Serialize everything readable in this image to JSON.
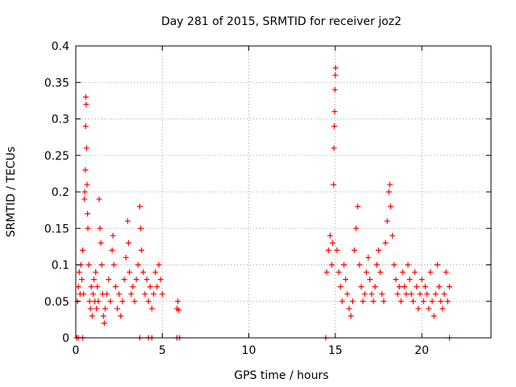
{
  "chart_data": {
    "type": "scatter",
    "title": "Day 281 of 2015, SRMTID for receiver joz2",
    "xlabel": "GPS time / hours",
    "ylabel": "SRMTID / TECUs",
    "xlim": [
      0,
      24
    ],
    "ylim": [
      0,
      0.4
    ],
    "xticks": [
      0,
      5,
      10,
      15,
      20
    ],
    "xtick_labels": [
      "0",
      "5",
      "10",
      "15",
      "20"
    ],
    "yticks": [
      0,
      0.05,
      0.1,
      0.15,
      0.2,
      0.25,
      0.3,
      0.35,
      0.4
    ],
    "ytick_labels": [
      "0",
      "0.05",
      "0.1",
      "0.15",
      "0.2",
      "0.25",
      "0.3",
      "0.35",
      "0.4"
    ],
    "grid": true,
    "marker": "+",
    "series": [
      {
        "name": "SRMTID joz2",
        "color": "#ff0000",
        "points": [
          [
            0.05,
            0
          ],
          [
            0.15,
            0
          ],
          [
            0.4,
            0
          ],
          [
            3.7,
            0
          ],
          [
            4.2,
            0
          ],
          [
            4.4,
            0
          ],
          [
            5.85,
            0
          ],
          [
            6.0,
            0
          ],
          [
            14.45,
            0
          ],
          [
            21.6,
            0
          ],
          [
            0.1,
            0.05
          ],
          [
            0.15,
            0.07
          ],
          [
            0.2,
            0.09
          ],
          [
            0.25,
            0.06
          ],
          [
            0.3,
            0.1
          ],
          [
            0.35,
            0.08
          ],
          [
            0.4,
            0.12
          ],
          [
            0.45,
            0.06
          ],
          [
            0.5,
            0.19
          ],
          [
            0.52,
            0.2
          ],
          [
            0.55,
            0.23
          ],
          [
            0.57,
            0.29
          ],
          [
            0.58,
            0.33
          ],
          [
            0.6,
            0.32
          ],
          [
            0.62,
            0.26
          ],
          [
            0.65,
            0.21
          ],
          [
            0.68,
            0.17
          ],
          [
            0.7,
            0.15
          ],
          [
            0.75,
            0.1
          ],
          [
            0.8,
            0.05
          ],
          [
            0.85,
            0.04
          ],
          [
            0.9,
            0.07
          ],
          [
            0.95,
            0.03
          ],
          [
            1.0,
            0.06
          ],
          [
            1.05,
            0.08
          ],
          [
            1.1,
            0.05
          ],
          [
            1.15,
            0.09
          ],
          [
            1.2,
            0.04
          ],
          [
            1.25,
            0.07
          ],
          [
            1.3,
            0.05
          ],
          [
            1.35,
            0.19
          ],
          [
            1.4,
            0.15
          ],
          [
            1.45,
            0.13
          ],
          [
            1.5,
            0.1
          ],
          [
            1.55,
            0.06
          ],
          [
            1.6,
            0.03
          ],
          [
            1.65,
            0.02
          ],
          [
            1.7,
            0.04
          ],
          [
            1.8,
            0.06
          ],
          [
            1.9,
            0.08
          ],
          [
            2.0,
            0.05
          ],
          [
            2.1,
            0.12
          ],
          [
            2.15,
            0.14
          ],
          [
            2.2,
            0.1
          ],
          [
            2.3,
            0.07
          ],
          [
            2.4,
            0.04
          ],
          [
            2.5,
            0.06
          ],
          [
            2.6,
            0.03
          ],
          [
            2.7,
            0.05
          ],
          [
            2.8,
            0.08
          ],
          [
            2.9,
            0.11
          ],
          [
            3.0,
            0.16
          ],
          [
            3.05,
            0.13
          ],
          [
            3.1,
            0.09
          ],
          [
            3.2,
            0.06
          ],
          [
            3.3,
            0.07
          ],
          [
            3.4,
            0.05
          ],
          [
            3.5,
            0.08
          ],
          [
            3.6,
            0.1
          ],
          [
            3.7,
            0.18
          ],
          [
            3.75,
            0.15
          ],
          [
            3.8,
            0.12
          ],
          [
            3.9,
            0.09
          ],
          [
            4.0,
            0.06
          ],
          [
            4.1,
            0.08
          ],
          [
            4.2,
            0.05
          ],
          [
            4.3,
            0.07
          ],
          [
            4.4,
            0.04
          ],
          [
            4.5,
            0.06
          ],
          [
            4.6,
            0.09
          ],
          [
            4.7,
            0.07
          ],
          [
            4.8,
            0.1
          ],
          [
            4.9,
            0.08
          ],
          [
            5.0,
            0.06
          ],
          [
            5.85,
            0.04
          ],
          [
            5.9,
            0.05
          ],
          [
            5.95,
            0.038
          ],
          [
            14.5,
            0.09
          ],
          [
            14.6,
            0.12
          ],
          [
            14.7,
            0.14
          ],
          [
            14.8,
            0.1
          ],
          [
            14.85,
            0.13
          ],
          [
            14.9,
            0.21
          ],
          [
            14.92,
            0.26
          ],
          [
            14.94,
            0.29
          ],
          [
            14.96,
            0.31
          ],
          [
            14.98,
            0.34
          ],
          [
            15.0,
            0.36
          ],
          [
            15.02,
            0.37
          ],
          [
            15.1,
            0.12
          ],
          [
            15.2,
            0.09
          ],
          [
            15.3,
            0.07
          ],
          [
            15.4,
            0.05
          ],
          [
            15.5,
            0.1
          ],
          [
            15.6,
            0.08
          ],
          [
            15.7,
            0.06
          ],
          [
            15.8,
            0.04
          ],
          [
            15.9,
            0.03
          ],
          [
            16.0,
            0.05
          ],
          [
            16.1,
            0.12
          ],
          [
            16.2,
            0.15
          ],
          [
            16.3,
            0.18
          ],
          [
            16.4,
            0.1
          ],
          [
            16.5,
            0.07
          ],
          [
            16.6,
            0.05
          ],
          [
            16.7,
            0.06
          ],
          [
            16.8,
            0.09
          ],
          [
            16.9,
            0.11
          ],
          [
            17.0,
            0.08
          ],
          [
            17.1,
            0.06
          ],
          [
            17.2,
            0.05
          ],
          [
            17.3,
            0.07
          ],
          [
            17.4,
            0.1
          ],
          [
            17.5,
            0.12
          ],
          [
            17.6,
            0.09
          ],
          [
            17.7,
            0.06
          ],
          [
            17.8,
            0.05
          ],
          [
            17.9,
            0.13
          ],
          [
            18.0,
            0.16
          ],
          [
            18.1,
            0.2
          ],
          [
            18.15,
            0.21
          ],
          [
            18.2,
            0.18
          ],
          [
            18.3,
            0.14
          ],
          [
            18.4,
            0.1
          ],
          [
            18.5,
            0.08
          ],
          [
            18.6,
            0.06
          ],
          [
            18.7,
            0.07
          ],
          [
            18.8,
            0.05
          ],
          [
            18.9,
            0.09
          ],
          [
            19.0,
            0.07
          ],
          [
            19.1,
            0.06
          ],
          [
            19.2,
            0.1
          ],
          [
            19.3,
            0.08
          ],
          [
            19.4,
            0.06
          ],
          [
            19.5,
            0.05
          ],
          [
            19.6,
            0.09
          ],
          [
            19.7,
            0.07
          ],
          [
            19.8,
            0.04
          ],
          [
            19.9,
            0.06
          ],
          [
            20.0,
            0.08
          ],
          [
            20.1,
            0.05
          ],
          [
            20.2,
            0.07
          ],
          [
            20.3,
            0.06
          ],
          [
            20.4,
            0.04
          ],
          [
            20.5,
            0.09
          ],
          [
            20.6,
            0.05
          ],
          [
            20.7,
            0.03
          ],
          [
            20.8,
            0.06
          ],
          [
            20.9,
            0.1
          ],
          [
            21.0,
            0.07
          ],
          [
            21.1,
            0.05
          ],
          [
            21.2,
            0.04
          ],
          [
            21.3,
            0.06
          ],
          [
            21.4,
            0.09
          ],
          [
            21.5,
            0.05
          ],
          [
            21.6,
            0.07
          ]
        ]
      }
    ]
  }
}
